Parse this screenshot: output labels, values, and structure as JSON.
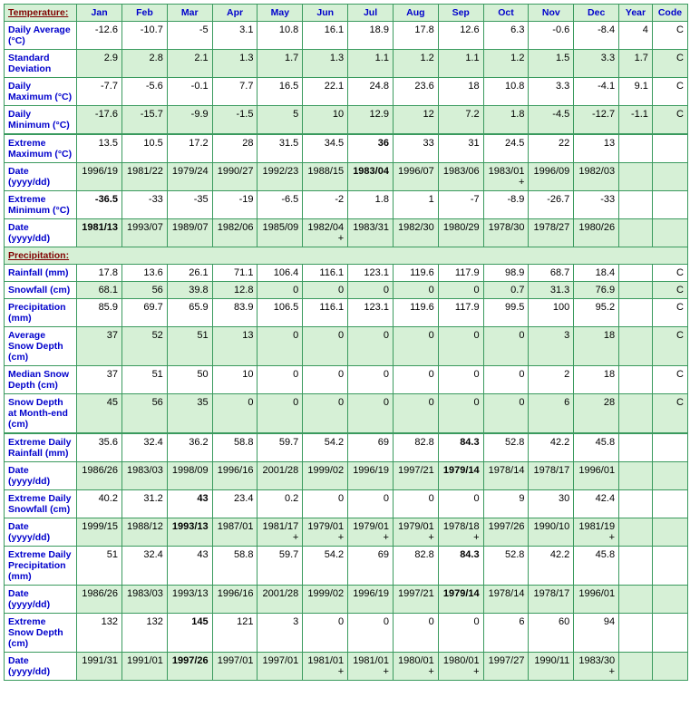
{
  "headers": {
    "section_temp": "Temperature:",
    "section_precip": "Precipitation:",
    "months": [
      "Jan",
      "Feb",
      "Mar",
      "Apr",
      "May",
      "Jun",
      "Jul",
      "Aug",
      "Sep",
      "Oct",
      "Nov",
      "Dec"
    ],
    "year": "Year",
    "code": "Code"
  },
  "rows": [
    {
      "id": "daily_avg",
      "label": "Daily Average (°C)",
      "alt": false,
      "vals": [
        "-12.6",
        "-10.7",
        "-5",
        "3.1",
        "10.8",
        "16.1",
        "18.9",
        "17.8",
        "12.6",
        "6.3",
        "-0.6",
        "-8.4",
        "4",
        "C"
      ]
    },
    {
      "id": "std_dev",
      "label": "Standard Deviation",
      "alt": true,
      "vals": [
        "2.9",
        "2.8",
        "2.1",
        "1.3",
        "1.7",
        "1.3",
        "1.1",
        "1.2",
        "1.1",
        "1.2",
        "1.5",
        "3.3",
        "1.7",
        "C"
      ]
    },
    {
      "id": "daily_max",
      "label": "Daily Maximum (°C)",
      "alt": false,
      "vals": [
        "-7.7",
        "-5.6",
        "-0.1",
        "7.7",
        "16.5",
        "22.1",
        "24.8",
        "23.6",
        "18",
        "10.8",
        "3.3",
        "-4.1",
        "9.1",
        "C"
      ]
    },
    {
      "id": "daily_min",
      "label": "Daily Minimum (°C)",
      "alt": true,
      "vals": [
        "-17.6",
        "-15.7",
        "-9.9",
        "-1.5",
        "5",
        "10",
        "12.9",
        "12",
        "7.2",
        "1.8",
        "-4.5",
        "-12.7",
        "-1.1",
        "C"
      ]
    },
    {
      "id": "ext_max",
      "label": "Extreme Maximum (°C)",
      "alt": false,
      "thick": true,
      "vals": [
        "13.5",
        "10.5",
        "17.2",
        "28",
        "31.5",
        "34.5",
        "36",
        "33",
        "31",
        "24.5",
        "22",
        "13",
        "",
        ""
      ],
      "bold": [
        6
      ]
    },
    {
      "id": "ext_max_date",
      "label": "Date (yyyy/dd)",
      "alt": true,
      "vals": [
        "1996/19",
        "1981/22",
        "1979/24",
        "1990/27",
        "1992/23",
        "1988/15",
        "1983/04",
        "1996/07",
        "1983/06",
        "1983/01+",
        "1996/09",
        "1982/03",
        "",
        ""
      ],
      "bold": [
        6
      ]
    },
    {
      "id": "ext_min",
      "label": "Extreme Minimum (°C)",
      "alt": false,
      "vals": [
        "-36.5",
        "-33",
        "-35",
        "-19",
        "-6.5",
        "-2",
        "1.8",
        "1",
        "-7",
        "-8.9",
        "-26.7",
        "-33",
        "",
        ""
      ],
      "bold": [
        0
      ]
    },
    {
      "id": "ext_min_date",
      "label": "Date (yyyy/dd)",
      "alt": true,
      "vals": [
        "1981/13",
        "1993/07",
        "1989/07",
        "1982/06",
        "1985/09",
        "1982/04+",
        "1983/31",
        "1982/30",
        "1980/29",
        "1978/30",
        "1978/27",
        "1980/26",
        "",
        ""
      ],
      "bold": [
        0
      ]
    },
    {
      "section": true
    },
    {
      "id": "rainfall",
      "label": "Rainfall (mm)",
      "alt": false,
      "vals": [
        "17.8",
        "13.6",
        "26.1",
        "71.1",
        "106.4",
        "116.1",
        "123.1",
        "119.6",
        "117.9",
        "98.9",
        "68.7",
        "18.4",
        "",
        "C"
      ]
    },
    {
      "id": "snowfall",
      "label": "Snowfall (cm)",
      "alt": true,
      "vals": [
        "68.1",
        "56",
        "39.8",
        "12.8",
        "0",
        "0",
        "0",
        "0",
        "0",
        "0.7",
        "31.3",
        "76.9",
        "",
        "C"
      ]
    },
    {
      "id": "precip",
      "label": "Precipitation (mm)",
      "alt": false,
      "vals": [
        "85.9",
        "69.7",
        "65.9",
        "83.9",
        "106.5",
        "116.1",
        "123.1",
        "119.6",
        "117.9",
        "99.5",
        "100",
        "95.2",
        "",
        "C"
      ]
    },
    {
      "id": "avg_snow",
      "label": "Average Snow Depth (cm)",
      "alt": true,
      "vals": [
        "37",
        "52",
        "51",
        "13",
        "0",
        "0",
        "0",
        "0",
        "0",
        "0",
        "3",
        "18",
        "",
        "C"
      ]
    },
    {
      "id": "med_snow",
      "label": "Median Snow Depth (cm)",
      "alt": false,
      "vals": [
        "37",
        "51",
        "50",
        "10",
        "0",
        "0",
        "0",
        "0",
        "0",
        "0",
        "2",
        "18",
        "",
        "C"
      ]
    },
    {
      "id": "snow_end",
      "label": "Snow Depth at Month-end (cm)",
      "alt": true,
      "vals": [
        "45",
        "56",
        "35",
        "0",
        "0",
        "0",
        "0",
        "0",
        "0",
        "0",
        "6",
        "28",
        "",
        "C"
      ]
    },
    {
      "id": "ext_rain",
      "label": "Extreme Daily Rainfall (mm)",
      "alt": false,
      "thick": true,
      "vals": [
        "35.6",
        "32.4",
        "36.2",
        "58.8",
        "59.7",
        "54.2",
        "69",
        "82.8",
        "84.3",
        "52.8",
        "42.2",
        "45.8",
        "",
        ""
      ],
      "bold": [
        8
      ]
    },
    {
      "id": "ext_rain_date",
      "label": "Date (yyyy/dd)",
      "alt": true,
      "vals": [
        "1986/26",
        "1983/03",
        "1998/09",
        "1996/16",
        "2001/28",
        "1999/02",
        "1996/19",
        "1997/21",
        "1979/14",
        "1978/14",
        "1978/17",
        "1996/01",
        "",
        ""
      ],
      "bold": [
        8
      ]
    },
    {
      "id": "ext_snow",
      "label": "Extreme Daily Snowfall (cm)",
      "alt": false,
      "vals": [
        "40.2",
        "31.2",
        "43",
        "23.4",
        "0.2",
        "0",
        "0",
        "0",
        "0",
        "9",
        "30",
        "42.4",
        "",
        ""
      ],
      "bold": [
        2
      ]
    },
    {
      "id": "ext_snow_date",
      "label": "Date (yyyy/dd)",
      "alt": true,
      "vals": [
        "1999/15",
        "1988/12",
        "1993/13",
        "1987/01",
        "1981/17+",
        "1979/01+",
        "1979/01+",
        "1979/01+",
        "1978/18+",
        "1997/26",
        "1990/10",
        "1981/19+",
        "",
        ""
      ],
      "bold": [
        2
      ]
    },
    {
      "id": "ext_precip",
      "label": "Extreme Daily Precipitation (mm)",
      "alt": false,
      "vals": [
        "51",
        "32.4",
        "43",
        "58.8",
        "59.7",
        "54.2",
        "69",
        "82.8",
        "84.3",
        "52.8",
        "42.2",
        "45.8",
        "",
        ""
      ],
      "bold": [
        8
      ]
    },
    {
      "id": "ext_precip_date",
      "label": "Date (yyyy/dd)",
      "alt": true,
      "vals": [
        "1986/26",
        "1983/03",
        "1993/13",
        "1996/16",
        "2001/28",
        "1999/02",
        "1996/19",
        "1997/21",
        "1979/14",
        "1978/14",
        "1978/17",
        "1996/01",
        "",
        ""
      ],
      "bold": [
        8
      ]
    },
    {
      "id": "ext_depth",
      "label": "Extreme Snow Depth (cm)",
      "alt": false,
      "vals": [
        "132",
        "132",
        "145",
        "121",
        "3",
        "0",
        "0",
        "0",
        "0",
        "6",
        "60",
        "94",
        "",
        ""
      ],
      "bold": [
        2
      ]
    },
    {
      "id": "ext_depth_date",
      "label": "Date (yyyy/dd)",
      "alt": true,
      "vals": [
        "1991/31",
        "1991/01",
        "1997/26",
        "1997/01",
        "1997/01",
        "1981/01+",
        "1981/01+",
        "1980/01+",
        "1980/01+",
        "1997/27",
        "1990/11",
        "1983/30+",
        "",
        ""
      ],
      "bold": [
        2
      ]
    }
  ],
  "style": {
    "header_bg": "#d6f0d6",
    "alt_bg": "#d6f0d6",
    "border_color": "#3a9a5e",
    "label_color": "#0000cc",
    "section_color": "#800000"
  }
}
